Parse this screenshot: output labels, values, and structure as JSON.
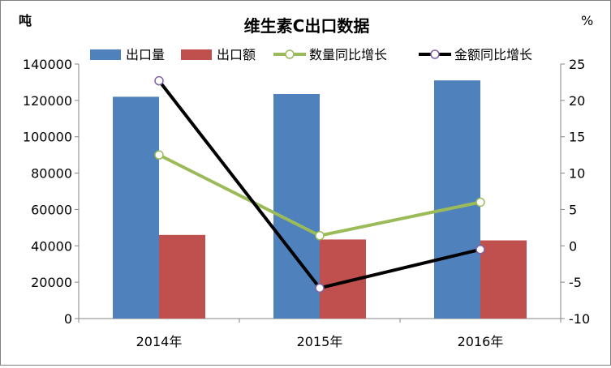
{
  "chart_data": {
    "type": "bar",
    "title": "维生素C出口数据",
    "left_unit": "吨",
    "right_unit": "%",
    "categories": [
      "2014年",
      "2015年",
      "2016年"
    ],
    "y_left": {
      "min": 0,
      "max": 140000,
      "step": 20000
    },
    "y_right": {
      "min": -10,
      "max": 25,
      "step": 5
    },
    "grid": false,
    "legend_position": "top",
    "bar_series": [
      {
        "name": "出口量",
        "color": "#4F81BD",
        "values": [
          122000,
          123500,
          131000
        ]
      },
      {
        "name": "出口额",
        "color": "#C0504D",
        "values": [
          46000,
          43500,
          43000
        ]
      }
    ],
    "line_series": [
      {
        "name": "数量同比增长",
        "color": "#9BBB59",
        "values": [
          12.5,
          1.4,
          6.0
        ]
      },
      {
        "name": "金额同比增长",
        "color": "#000000",
        "marker_stroke": "#8064A2",
        "values": [
          22.7,
          -5.8,
          -0.5
        ]
      }
    ]
  }
}
